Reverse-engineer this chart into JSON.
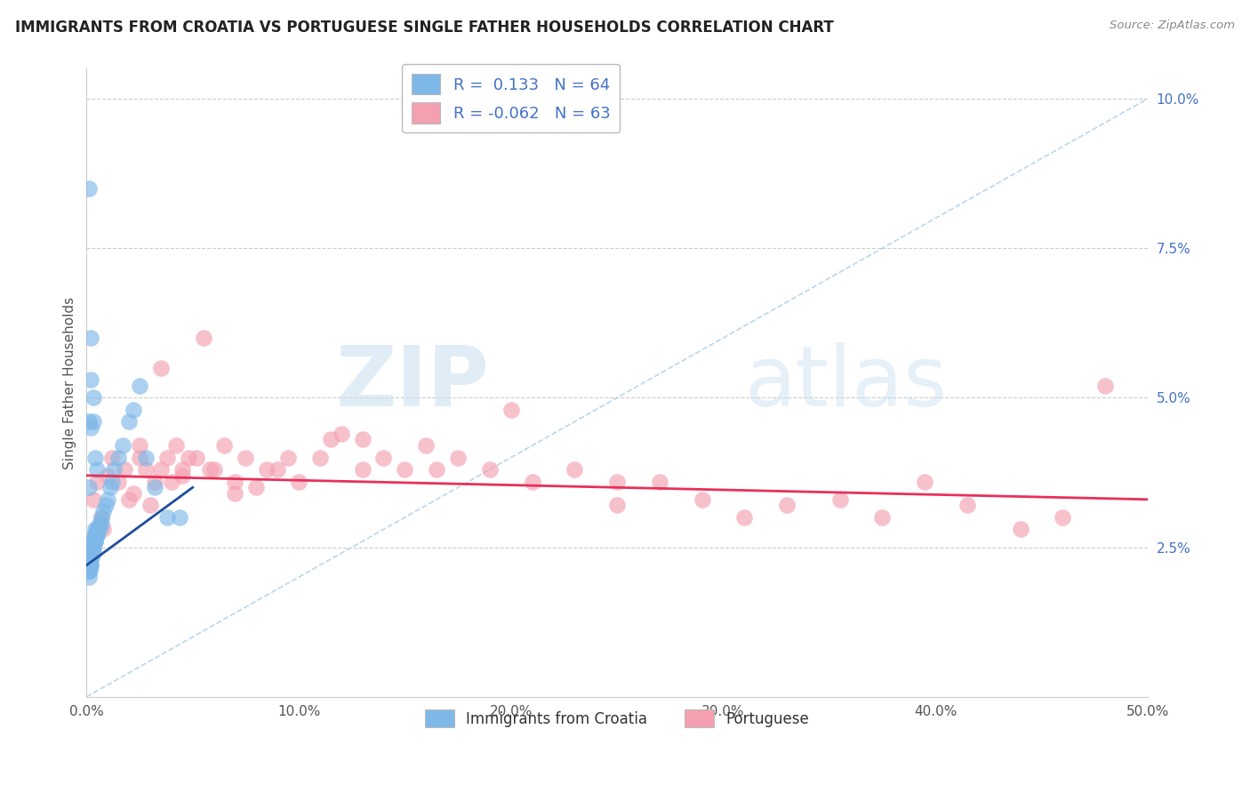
{
  "title": "IMMIGRANTS FROM CROATIA VS PORTUGUESE SINGLE FATHER HOUSEHOLDS CORRELATION CHART",
  "source": "Source: ZipAtlas.com",
  "ylabel": "Single Father Households",
  "xmin": 0.0,
  "xmax": 0.5,
  "ymin": 0.0,
  "ymax": 0.105,
  "xtick_vals": [
    0.0,
    0.1,
    0.2,
    0.3,
    0.4,
    0.5
  ],
  "xtick_labels": [
    "0.0%",
    "10.0%",
    "20.0%",
    "30.0%",
    "40.0%",
    "50.0%"
  ],
  "ytick_vals": [
    0.025,
    0.05,
    0.075,
    0.1
  ],
  "ytick_labels": [
    "2.5%",
    "5.0%",
    "7.5%",
    "10.0%"
  ],
  "r_croatia": 0.133,
  "n_croatia": 64,
  "r_portuguese": -0.062,
  "n_portuguese": 63,
  "legend_label_croatia": "Immigrants from Croatia",
  "legend_label_portuguese": "Portuguese",
  "color_croatia": "#7EB8E8",
  "color_portuguese": "#F4A0B0",
  "trend_color_croatia": "#1F4E9C",
  "trend_color_portuguese": "#E8305A",
  "watermark_zip": "ZIP",
  "watermark_atlas": "atlas",
  "croatia_x": [
    0.0005,
    0.0005,
    0.001,
    0.001,
    0.001,
    0.001,
    0.001,
    0.001,
    0.0015,
    0.0015,
    0.0015,
    0.002,
    0.002,
    0.002,
    0.002,
    0.002,
    0.002,
    0.002,
    0.0025,
    0.0025,
    0.003,
    0.003,
    0.003,
    0.003,
    0.003,
    0.0035,
    0.004,
    0.004,
    0.004,
    0.004,
    0.004,
    0.005,
    0.005,
    0.005,
    0.005,
    0.006,
    0.006,
    0.007,
    0.007,
    0.008,
    0.009,
    0.01,
    0.011,
    0.012,
    0.013,
    0.015,
    0.017,
    0.02,
    0.022,
    0.025,
    0.028,
    0.032,
    0.038,
    0.044,
    0.001,
    0.002,
    0.003,
    0.004,
    0.005,
    0.001,
    0.002,
    0.003,
    0.002,
    0.001
  ],
  "croatia_y": [
    0.024,
    0.023,
    0.022,
    0.022,
    0.022,
    0.021,
    0.021,
    0.02,
    0.023,
    0.022,
    0.021,
    0.025,
    0.024,
    0.024,
    0.023,
    0.023,
    0.022,
    0.022,
    0.025,
    0.024,
    0.026,
    0.026,
    0.025,
    0.025,
    0.024,
    0.027,
    0.028,
    0.027,
    0.027,
    0.026,
    0.026,
    0.028,
    0.028,
    0.027,
    0.027,
    0.029,
    0.028,
    0.03,
    0.029,
    0.031,
    0.032,
    0.033,
    0.035,
    0.036,
    0.038,
    0.04,
    0.042,
    0.046,
    0.048,
    0.052,
    0.04,
    0.035,
    0.03,
    0.03,
    0.046,
    0.053,
    0.046,
    0.04,
    0.038,
    0.085,
    0.06,
    0.05,
    0.045,
    0.035
  ],
  "portuguese_x": [
    0.003,
    0.005,
    0.007,
    0.008,
    0.01,
    0.012,
    0.015,
    0.018,
    0.02,
    0.022,
    0.025,
    0.028,
    0.03,
    0.032,
    0.035,
    0.038,
    0.04,
    0.042,
    0.045,
    0.048,
    0.052,
    0.055,
    0.06,
    0.065,
    0.07,
    0.075,
    0.08,
    0.09,
    0.1,
    0.11,
    0.12,
    0.13,
    0.14,
    0.15,
    0.16,
    0.175,
    0.19,
    0.21,
    0.23,
    0.25,
    0.27,
    0.29,
    0.31,
    0.33,
    0.355,
    0.375,
    0.395,
    0.415,
    0.44,
    0.46,
    0.48,
    0.025,
    0.035,
    0.045,
    0.058,
    0.07,
    0.085,
    0.095,
    0.115,
    0.13,
    0.165,
    0.2,
    0.25
  ],
  "portuguese_y": [
    0.033,
    0.036,
    0.03,
    0.028,
    0.037,
    0.04,
    0.036,
    0.038,
    0.033,
    0.034,
    0.042,
    0.038,
    0.032,
    0.036,
    0.038,
    0.04,
    0.036,
    0.042,
    0.037,
    0.04,
    0.04,
    0.06,
    0.038,
    0.042,
    0.036,
    0.04,
    0.035,
    0.038,
    0.036,
    0.04,
    0.044,
    0.038,
    0.04,
    0.038,
    0.042,
    0.04,
    0.038,
    0.036,
    0.038,
    0.032,
    0.036,
    0.033,
    0.03,
    0.032,
    0.033,
    0.03,
    0.036,
    0.032,
    0.028,
    0.03,
    0.052,
    0.04,
    0.055,
    0.038,
    0.038,
    0.034,
    0.038,
    0.04,
    0.043,
    0.043,
    0.038,
    0.048,
    0.036
  ],
  "por_trend_x0": 0.0,
  "por_trend_y0": 0.037,
  "por_trend_x1": 0.5,
  "por_trend_y1": 0.033,
  "cro_trend_x0": 0.0,
  "cro_trend_y0": 0.022,
  "cro_trend_x1": 0.05,
  "cro_trend_y1": 0.035
}
